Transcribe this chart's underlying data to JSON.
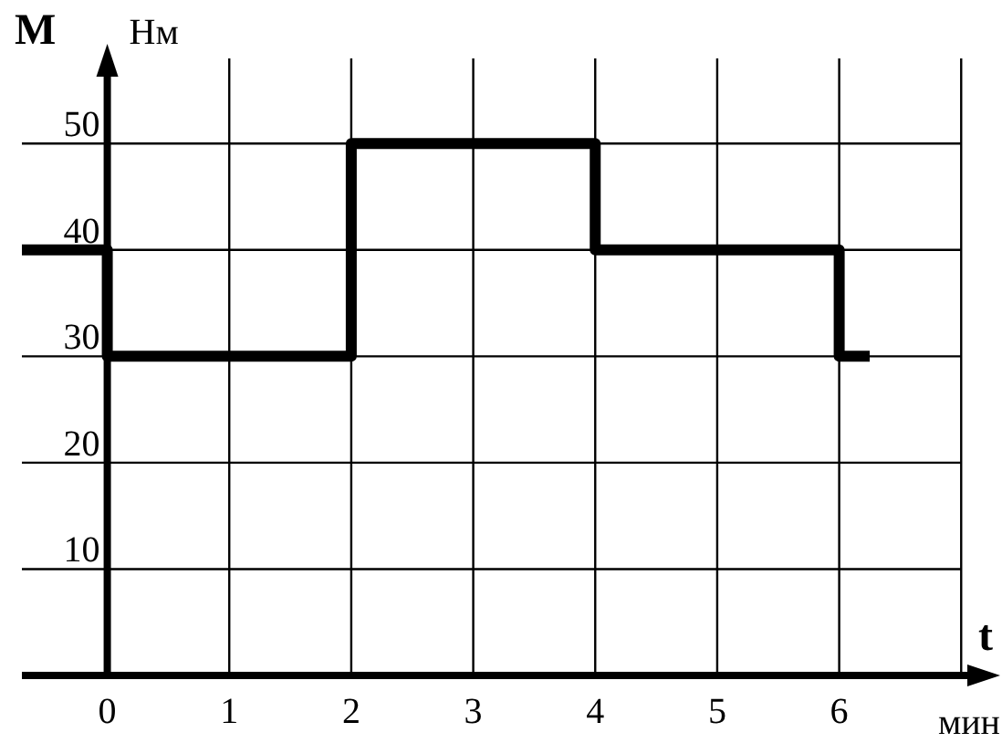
{
  "chart_data": {
    "type": "step",
    "xlabel": "t",
    "ylabel": "M",
    "annotations": [
      "Нм",
      "мин"
    ],
    "x": [
      -0.7,
      0,
      2,
      4,
      6,
      6.25
    ],
    "series": [
      {
        "color": "#000000",
        "values": [
          40,
          30,
          50,
          40,
          30,
          30
        ]
      }
    ],
    "xlim": [
      -0.7,
      7.2
    ],
    "xticks": [
      0,
      1,
      2,
      3,
      4,
      5,
      6,
      {
        "value": 7,
        "label": null
      }
    ],
    "ylim": [
      0,
      58
    ],
    "yticks": [
      10,
      20,
      30,
      40,
      50
    ],
    "grid": true,
    "line_style": "solid"
  }
}
